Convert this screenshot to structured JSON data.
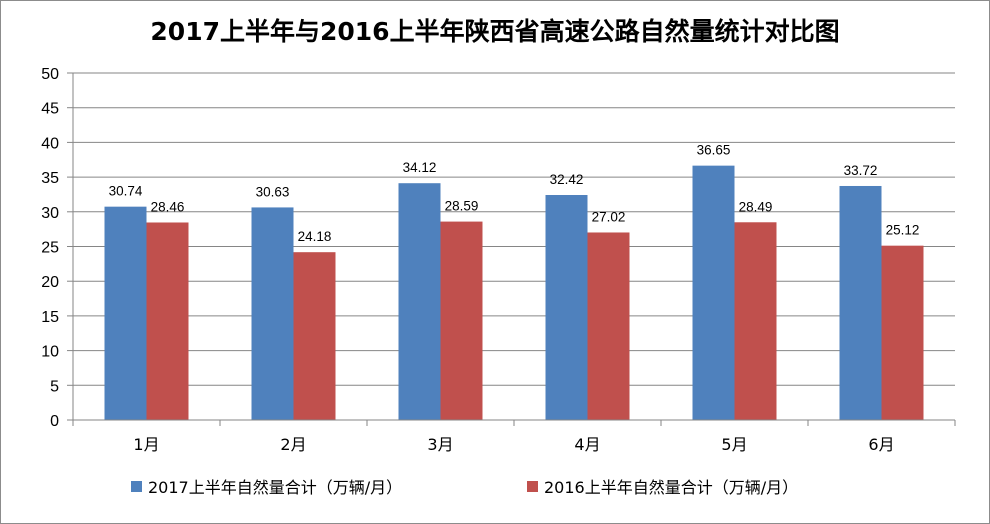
{
  "chart_data": {
    "type": "bar",
    "title": "2017上半年与2016上半年陕西省高速公路自然量统计对比图",
    "categories": [
      "1月",
      "2月",
      "3月",
      "4月",
      "5月",
      "6月"
    ],
    "series": [
      {
        "name": "2017上半年自然量合计（万辆/月）",
        "color": "#4f81bd",
        "values": [
          30.74,
          30.63,
          34.12,
          32.42,
          36.65,
          33.72
        ]
      },
      {
        "name": "2016上半年自然量合计（万辆/月）",
        "color": "#c0504d",
        "values": [
          28.46,
          24.18,
          28.59,
          27.02,
          28.49,
          25.12
        ]
      }
    ],
    "ylim": [
      0,
      50
    ],
    "yticks": [
      "0",
      "5",
      "10",
      "15",
      "20",
      "25",
      "30",
      "35",
      "40",
      "45",
      "50"
    ],
    "grid": true,
    "legend_position": "bottom",
    "data_labels": true
  }
}
